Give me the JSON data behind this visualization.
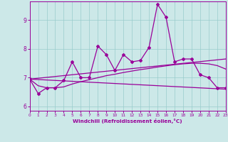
{
  "xlabel": "Windchill (Refroidissement éolien,°C)",
  "xlim": [
    0,
    23
  ],
  "ylim": [
    5.85,
    9.65
  ],
  "yticks": [
    6,
    7,
    8,
    9
  ],
  "xticks": [
    0,
    1,
    2,
    3,
    4,
    5,
    6,
    7,
    8,
    9,
    10,
    11,
    12,
    13,
    14,
    15,
    16,
    17,
    18,
    19,
    20,
    21,
    22,
    23
  ],
  "bg_color": "#cce8e8",
  "line_color": "#990099",
  "grid_color": "#99cccc",
  "series_main": {
    "x": [
      0,
      1,
      2,
      3,
      4,
      5,
      6,
      7,
      8,
      9,
      10,
      11,
      12,
      13,
      14,
      15,
      16,
      17,
      18,
      19,
      20,
      21,
      22,
      23
    ],
    "y": [
      6.95,
      6.45,
      6.65,
      6.65,
      6.9,
      7.55,
      7.0,
      7.0,
      8.1,
      7.8,
      7.25,
      7.8,
      7.55,
      7.6,
      8.05,
      9.55,
      9.1,
      7.55,
      7.65,
      7.65,
      7.1,
      7.0,
      6.65,
      6.65
    ]
  },
  "series_trend_up": {
    "x": [
      0,
      23
    ],
    "y": [
      6.95,
      7.65
    ]
  },
  "series_trend_down": {
    "x": [
      0,
      23
    ],
    "y": [
      6.95,
      6.6
    ]
  },
  "series_smooth": {
    "x": [
      0,
      1,
      2,
      3,
      4,
      5,
      6,
      7,
      8,
      9,
      10,
      11,
      12,
      13,
      14,
      15,
      16,
      17,
      18,
      19,
      20,
      21,
      22,
      23
    ],
    "y": [
      6.95,
      6.72,
      6.65,
      6.65,
      6.68,
      6.78,
      6.86,
      6.93,
      7.0,
      7.07,
      7.12,
      7.18,
      7.23,
      7.28,
      7.32,
      7.37,
      7.41,
      7.45,
      7.48,
      7.5,
      7.5,
      7.48,
      7.42,
      7.3
    ]
  }
}
